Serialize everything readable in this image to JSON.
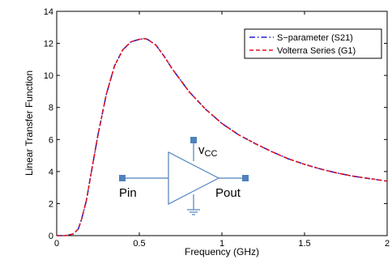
{
  "chart_data": {
    "type": "line",
    "title": "",
    "xlabel": "Frequency (GHz)",
    "ylabel": "Linear Transfer Function",
    "xlim": [
      0,
      2
    ],
    "ylim": [
      0,
      14
    ],
    "xticks": [
      0,
      0.5,
      1,
      1.5,
      2
    ],
    "xtick_labels": [
      "0",
      "0.5",
      "1",
      "1.5",
      "2"
    ],
    "yticks": [
      0,
      2,
      4,
      6,
      8,
      10,
      12,
      14
    ],
    "ytick_labels": [
      "0",
      "2",
      "4",
      "6",
      "8",
      "10",
      "12",
      "14"
    ],
    "grid": false,
    "legend_position": "top-right",
    "series": [
      {
        "name": "S−parameter (S21)",
        "color": "#1f1fd0",
        "dash": "dash-dot",
        "x": [
          0,
          0.05,
          0.1,
          0.13,
          0.15,
          0.18,
          0.2,
          0.25,
          0.3,
          0.35,
          0.4,
          0.45,
          0.5,
          0.53,
          0.55,
          0.6,
          0.65,
          0.7,
          0.75,
          0.8,
          0.9,
          1.0,
          1.1,
          1.2,
          1.3,
          1.4,
          1.5,
          1.6,
          1.7,
          1.8,
          1.9,
          2.0
        ],
        "y": [
          0,
          0,
          0.1,
          0.4,
          1.0,
          2.2,
          3.4,
          6.3,
          8.8,
          10.6,
          11.6,
          12.1,
          12.25,
          12.3,
          12.25,
          11.9,
          11.2,
          10.4,
          9.7,
          9.0,
          7.9,
          7.0,
          6.3,
          5.75,
          5.25,
          4.8,
          4.45,
          4.15,
          3.9,
          3.7,
          3.55,
          3.4
        ]
      },
      {
        "name": "Volterra Series (G1)",
        "color": "#e0141e",
        "dash": "dashed",
        "x": [
          0,
          0.05,
          0.1,
          0.13,
          0.15,
          0.18,
          0.2,
          0.25,
          0.3,
          0.35,
          0.4,
          0.45,
          0.5,
          0.53,
          0.55,
          0.6,
          0.65,
          0.7,
          0.75,
          0.8,
          0.9,
          1.0,
          1.1,
          1.2,
          1.3,
          1.4,
          1.5,
          1.6,
          1.7,
          1.8,
          1.9,
          2.0
        ],
        "y": [
          0,
          0,
          0.1,
          0.4,
          1.0,
          2.2,
          3.4,
          6.3,
          8.8,
          10.6,
          11.6,
          12.1,
          12.25,
          12.3,
          12.25,
          11.9,
          11.2,
          10.4,
          9.7,
          9.0,
          7.9,
          7.0,
          6.3,
          5.75,
          5.25,
          4.8,
          4.45,
          4.15,
          3.9,
          3.7,
          3.55,
          3.4
        ]
      }
    ],
    "inset_labels": {
      "vcc_main": "v",
      "vcc_sub": "CC",
      "input": "Pin",
      "output": "Pout"
    },
    "inset_color": "#4f81bd"
  }
}
